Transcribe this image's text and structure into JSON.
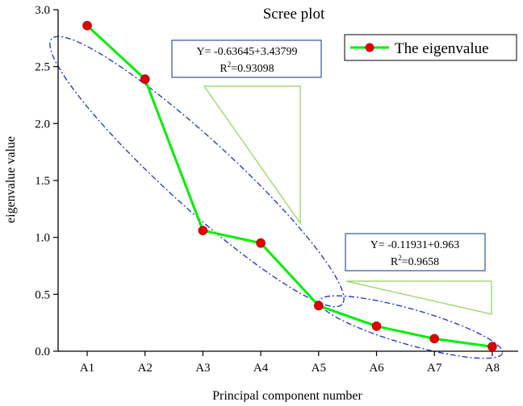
{
  "chart_data": {
    "type": "line",
    "title": "Scree plot",
    "xlabel": "Principal component number",
    "ylabel": "eigenvalue value",
    "categories": [
      "A1",
      "A2",
      "A3",
      "A4",
      "A5",
      "A6",
      "A7",
      "A8"
    ],
    "series": [
      {
        "name": "The eigenvalue",
        "values": [
          2.86,
          2.39,
          1.06,
          0.95,
          0.4,
          0.22,
          0.11,
          0.04
        ],
        "line_color": "#00ee00",
        "marker_color": "#e00000"
      }
    ],
    "ylim": [
      0.0,
      3.0
    ],
    "yticks": [
      "0.0",
      "0.5",
      "1.0",
      "1.5",
      "2.0",
      "2.5",
      "3.0"
    ],
    "grid": false,
    "legend_position": "top-right",
    "annotations": [
      {
        "equation": "Y= -0.63645+3.43799",
        "r2_prefix": "R",
        "r2_sup": "2",
        "r2_value": "=0.93098"
      },
      {
        "equation": "Y= -0.11931+0.963",
        "r2_prefix": "R",
        "r2_sup": "2",
        "r2_value": "=0.9658"
      }
    ],
    "colors": {
      "ellipse": "#1a2fd0",
      "annotation_border": "#2f5597",
      "triangle": "#8fd35a"
    }
  }
}
